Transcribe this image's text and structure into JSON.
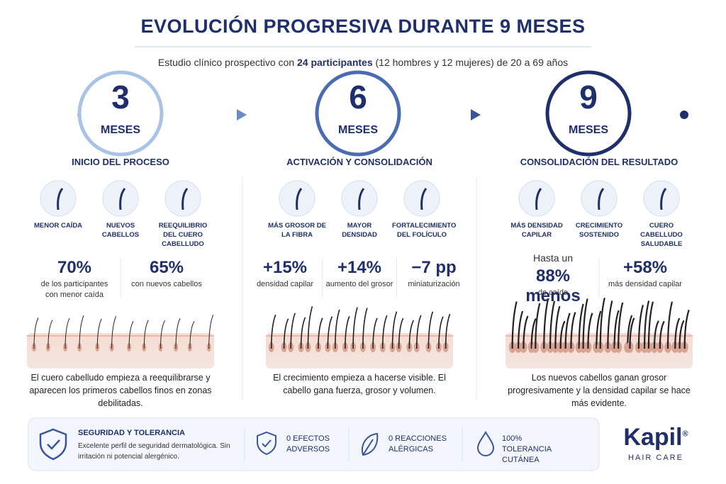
{
  "header": {
    "title": "EVOLUCIÓN PROGRESIVA DURANTE 9 MESES",
    "subtitle": {
      "before": "Estudio clínico prospectivo con",
      "bold": "24 participantes",
      "after": "(12 hombres y 12 mujeres) de 20 a 69 años"
    }
  },
  "timeline": {
    "milestones": [
      {
        "number": "3",
        "unit": "MESES"
      },
      {
        "number": "6",
        "unit": "MESES"
      },
      {
        "number": "9",
        "unit": "MESES"
      }
    ]
  },
  "phases": [
    {
      "title": "INICIO DEL PROCESO",
      "icons": [
        {
          "label": "MENOR CAÍDA"
        },
        {
          "label": "NUEVOS CABELLOS"
        },
        {
          "label": "REEQUILIBRIO DEL CUERO CABELLUDO"
        }
      ],
      "stats": [
        {
          "value": "70%",
          "label": "de los participantes con menor caída"
        },
        {
          "value": "65%",
          "label": "con nuevos cabellos"
        }
      ],
      "description": "El cuero cabelludo empieza a reequilibrarse y aparecen los primeros cabellos finos en zonas debilitadas."
    },
    {
      "title": "ACTIVACIÓN Y CONSOLIDACIÓN",
      "icons": [
        {
          "label": "MÁS GROSOR DE LA FIBRA"
        },
        {
          "label": "MAYOR DENSIDAD"
        },
        {
          "label": "FORTALECIMIENTO DEL FOLÍCULO"
        }
      ],
      "stats": [
        {
          "value": "+15%",
          "label": "densidad capilar"
        },
        {
          "value": "+14%",
          "label": "aumento del grosor"
        },
        {
          "value": "−7 pp",
          "label": "miniaturización"
        }
      ],
      "description": "El crecimiento empieza a hacerse visible. El cabello gana fuerza, grosor y volumen."
    },
    {
      "title": "CONSOLIDACIÓN DEL RESULTADO",
      "icons": [
        {
          "label": "MÁS DENSIDAD CAPILAR"
        },
        {
          "label": "CRECIMIENTO SOSTENIDO"
        },
        {
          "label": "CUERO CABELLUDO SALUDABLE"
        }
      ],
      "stats": [
        {
          "prefix": "Hasta un",
          "value": "88% menos",
          "label": "de caída"
        },
        {
          "value": "+58%",
          "label": "más densidad capilar"
        }
      ],
      "description": "Los nuevos cabellos ganan grosor progresivamente y la densidad capilar se hace más evidente."
    }
  ],
  "footer": {
    "safety": {
      "title": "SEGURIDAD Y TOLERANCIA",
      "text": "Excelente perfil de seguridad dermatológica. Sin irritación ni potencial alergénico."
    },
    "items": [
      "0 EFECTOS ADVERSOS",
      "0 REACCIONES ALÉRGICAS",
      "100% TOLERANCIA CUTÁNEA"
    ]
  },
  "brand": {
    "name": "Kapil",
    "mark": "®",
    "tagline": "HAIR CARE"
  }
}
